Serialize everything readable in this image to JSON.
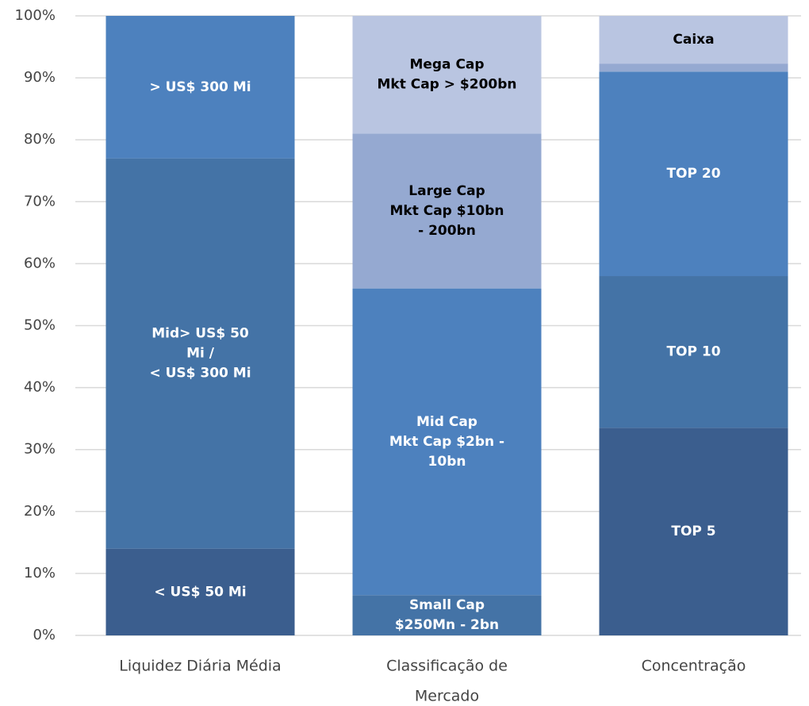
{
  "chart_data": {
    "type": "stacked_bar",
    "categories": [
      [
        "Liquidez Diária Média"
      ],
      [
        "Classificação de",
        "Mercado"
      ],
      [
        "Concentração"
      ]
    ],
    "bars": [
      {
        "segments": [
          {
            "label": [
              "< US$ 50 Mi"
            ],
            "value": 14,
            "color": "#3b5e8e"
          },
          {
            "label": [
              "Mid> US$ 50",
              "Mi /",
              "< US$ 300 Mi"
            ],
            "value": 63,
            "color": "#4473a6"
          },
          {
            "label": [
              "> US$ 300 Mi"
            ],
            "value": 23,
            "color": "#4d81be"
          }
        ]
      },
      {
        "segments": [
          {
            "label": [
              "Small Cap",
              "$250Mn - 2bn"
            ],
            "value": 6.5,
            "color": "#4473a6"
          },
          {
            "label": [
              "Mid Cap",
              "Mkt Cap $2bn -",
              "10bn"
            ],
            "value": 49.5,
            "color": "#4d81be"
          },
          {
            "label": [
              "Large Cap",
              "Mkt Cap $10bn",
              "- 200bn"
            ],
            "value": 25,
            "color": "#95a9d1"
          },
          {
            "label": [
              "Mega Cap",
              "Mkt Cap > $200bn"
            ],
            "value": 19,
            "color": "#b9c5e1"
          }
        ]
      },
      {
        "segments": [
          {
            "label": [
              "TOP 5"
            ],
            "value": 33.5,
            "color": "#3b5e8e"
          },
          {
            "label": [
              "TOP 10"
            ],
            "value": 24.5,
            "color": "#4473a6"
          },
          {
            "label": [
              "TOP 20"
            ],
            "value": 33,
            "color": "#4d81be"
          },
          {
            "label": null,
            "value": 1.3,
            "color": "#95a9d1"
          },
          {
            "label": [
              "Caixa"
            ],
            "value": 7.7,
            "color": "#b9c5e1"
          }
        ]
      }
    ],
    "ylim": [
      0,
      100
    ],
    "yticks": [
      {
        "value": 0,
        "label": "0%"
      },
      {
        "value": 10,
        "label": "10%"
      },
      {
        "value": 20,
        "label": "20%"
      },
      {
        "value": 30,
        "label": "30%"
      },
      {
        "value": 40,
        "label": "40%"
      },
      {
        "value": 50,
        "label": "50%"
      },
      {
        "value": 60,
        "label": "60%"
      },
      {
        "value": 70,
        "label": "70%"
      },
      {
        "value": 80,
        "label": "80%"
      },
      {
        "value": 90,
        "label": "90%"
      },
      {
        "value": 100,
        "label": "100%"
      }
    ],
    "grid": true
  }
}
